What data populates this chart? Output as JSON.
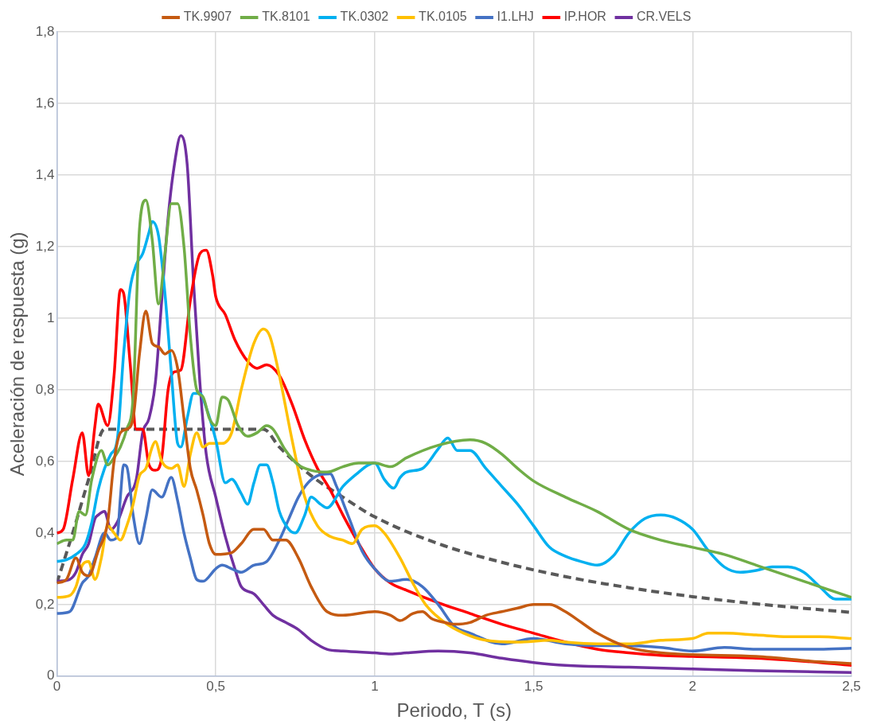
{
  "chart_data": {
    "type": "line",
    "xlabel": "Periodo, T (s)",
    "ylabel": "Aceleración de respuesta (g)",
    "xlim": [
      0,
      2.5
    ],
    "xticks": [
      0,
      {
        "value": 0.5,
        "label": "0,5"
      },
      1,
      {
        "value": 1.5,
        "label": "1,5"
      },
      2,
      {
        "value": 2.5,
        "label": "2,5"
      }
    ],
    "ylim": [
      0,
      1.8
    ],
    "yticks": [
      0,
      {
        "value": 0.2,
        "label": "0,2"
      },
      {
        "value": 0.4,
        "label": "0,4"
      },
      {
        "value": 0.6,
        "label": "0,6"
      },
      {
        "value": 0.8,
        "label": "0,8"
      },
      1,
      {
        "value": 1.2,
        "label": "1,2"
      },
      {
        "value": 1.4,
        "label": "1,4"
      },
      {
        "value": 1.6,
        "label": "1,6"
      },
      {
        "value": 1.8,
        "label": "1,8"
      }
    ],
    "grid": true,
    "legend": "top",
    "marker": "none",
    "series": [
      {
        "name": "TK.9907",
        "color": "#c55a11",
        "x": [
          0,
          0.03,
          0.06,
          0.08,
          0.1,
          0.13,
          0.16,
          0.18,
          0.2,
          0.22,
          0.24,
          0.26,
          0.28,
          0.3,
          0.32,
          0.34,
          0.36,
          0.38,
          0.4,
          0.42,
          0.44,
          0.46,
          0.48,
          0.5,
          0.55,
          0.58,
          0.62,
          0.65,
          0.68,
          0.72,
          0.76,
          0.8,
          0.85,
          0.9,
          1.0,
          1.05,
          1.08,
          1.12,
          1.15,
          1.18,
          1.22,
          1.25,
          1.3,
          1.35,
          1.4,
          1.45,
          1.5,
          1.55,
          1.6,
          1.65,
          1.7,
          1.8,
          1.9,
          2.0,
          2.2,
          2.4,
          2.5
        ],
        "values": [
          0.26,
          0.27,
          0.33,
          0.29,
          0.28,
          0.35,
          0.43,
          0.6,
          0.68,
          0.69,
          0.72,
          0.9,
          1.02,
          0.93,
          0.92,
          0.9,
          0.91,
          0.86,
          0.72,
          0.58,
          0.52,
          0.45,
          0.37,
          0.34,
          0.345,
          0.37,
          0.41,
          0.41,
          0.38,
          0.38,
          0.33,
          0.25,
          0.18,
          0.17,
          0.18,
          0.17,
          0.155,
          0.175,
          0.18,
          0.16,
          0.15,
          0.145,
          0.15,
          0.17,
          0.18,
          0.19,
          0.2,
          0.2,
          0.18,
          0.15,
          0.12,
          0.08,
          0.065,
          0.06,
          0.055,
          0.04,
          0.035
        ]
      },
      {
        "name": "TK.8101",
        "color": "#70ad47",
        "x": [
          0,
          0.03,
          0.05,
          0.07,
          0.09,
          0.11,
          0.14,
          0.16,
          0.18,
          0.2,
          0.22,
          0.24,
          0.26,
          0.28,
          0.3,
          0.32,
          0.34,
          0.36,
          0.38,
          0.4,
          0.42,
          0.44,
          0.46,
          0.48,
          0.5,
          0.52,
          0.54,
          0.57,
          0.6,
          0.63,
          0.66,
          0.68,
          0.72,
          0.76,
          0.8,
          0.85,
          0.9,
          0.95,
          1.0,
          1.05,
          1.1,
          1.2,
          1.3,
          1.35,
          1.4,
          1.45,
          1.5,
          1.6,
          1.7,
          1.8,
          1.9,
          2.0,
          2.1,
          2.2,
          2.3,
          2.4,
          2.5
        ],
        "values": [
          0.37,
          0.38,
          0.38,
          0.46,
          0.45,
          0.55,
          0.63,
          0.59,
          0.61,
          0.64,
          0.69,
          0.78,
          1.25,
          1.33,
          1.22,
          1.04,
          1.18,
          1.32,
          1.32,
          1.2,
          0.95,
          0.8,
          0.78,
          0.72,
          0.7,
          0.78,
          0.77,
          0.7,
          0.67,
          0.68,
          0.7,
          0.69,
          0.63,
          0.59,
          0.575,
          0.57,
          0.585,
          0.595,
          0.595,
          0.585,
          0.61,
          0.645,
          0.66,
          0.65,
          0.62,
          0.58,
          0.545,
          0.5,
          0.46,
          0.41,
          0.38,
          0.36,
          0.34,
          0.31,
          0.28,
          0.25,
          0.22
        ]
      },
      {
        "name": "TK.0302",
        "color": "#00b0f0",
        "x": [
          0,
          0.03,
          0.06,
          0.09,
          0.11,
          0.13,
          0.15,
          0.17,
          0.19,
          0.21,
          0.23,
          0.25,
          0.27,
          0.29,
          0.3,
          0.32,
          0.34,
          0.36,
          0.38,
          0.39,
          0.41,
          0.43,
          0.45,
          0.47,
          0.5,
          0.53,
          0.55,
          0.58,
          0.6,
          0.62,
          0.64,
          0.66,
          0.68,
          0.7,
          0.73,
          0.75,
          0.78,
          0.8,
          0.83,
          0.85,
          0.9,
          0.95,
          0.98,
          1.0,
          1.03,
          1.06,
          1.08,
          1.1,
          1.15,
          1.2,
          1.23,
          1.26,
          1.3,
          1.35,
          1.4,
          1.45,
          1.5,
          1.55,
          1.6,
          1.65,
          1.7,
          1.75,
          1.8,
          1.85,
          1.9,
          1.95,
          2.0,
          2.05,
          2.1,
          2.15,
          2.2,
          2.25,
          2.3,
          2.35,
          2.4,
          2.45,
          2.5
        ],
        "values": [
          0.32,
          0.325,
          0.34,
          0.37,
          0.43,
          0.52,
          0.58,
          0.62,
          0.66,
          0.9,
          1.08,
          1.15,
          1.18,
          1.24,
          1.27,
          1.23,
          1.07,
          0.85,
          0.65,
          0.64,
          0.72,
          0.79,
          0.79,
          0.75,
          0.66,
          0.54,
          0.55,
          0.51,
          0.48,
          0.54,
          0.59,
          0.59,
          0.54,
          0.46,
          0.41,
          0.4,
          0.45,
          0.5,
          0.48,
          0.47,
          0.53,
          0.57,
          0.59,
          0.595,
          0.55,
          0.525,
          0.555,
          0.57,
          0.58,
          0.635,
          0.665,
          0.63,
          0.63,
          0.58,
          0.53,
          0.48,
          0.42,
          0.36,
          0.335,
          0.32,
          0.31,
          0.335,
          0.4,
          0.44,
          0.45,
          0.44,
          0.41,
          0.35,
          0.305,
          0.29,
          0.295,
          0.305,
          0.305,
          0.29,
          0.25,
          0.215,
          0.215
        ]
      },
      {
        "name": "TK.0105",
        "color": "#ffc000",
        "x": [
          0,
          0.04,
          0.06,
          0.08,
          0.1,
          0.12,
          0.14,
          0.16,
          0.18,
          0.2,
          0.22,
          0.24,
          0.26,
          0.28,
          0.3,
          0.31,
          0.33,
          0.36,
          0.38,
          0.4,
          0.42,
          0.44,
          0.46,
          0.48,
          0.52,
          0.55,
          0.58,
          0.62,
          0.65,
          0.67,
          0.7,
          0.74,
          0.78,
          0.82,
          0.86,
          0.9,
          0.93,
          0.96,
          1.0,
          1.03,
          1.08,
          1.12,
          1.16,
          1.22,
          1.28,
          1.35,
          1.45,
          1.55,
          1.6,
          1.7,
          1.8,
          1.9,
          2.0,
          2.05,
          2.1,
          2.2,
          2.3,
          2.4,
          2.5
        ],
        "values": [
          0.22,
          0.225,
          0.25,
          0.31,
          0.32,
          0.27,
          0.33,
          0.42,
          0.4,
          0.38,
          0.42,
          0.48,
          0.56,
          0.58,
          0.64,
          0.655,
          0.6,
          0.58,
          0.59,
          0.53,
          0.62,
          0.68,
          0.64,
          0.65,
          0.65,
          0.68,
          0.8,
          0.93,
          0.97,
          0.95,
          0.84,
          0.66,
          0.5,
          0.42,
          0.39,
          0.38,
          0.37,
          0.41,
          0.42,
          0.4,
          0.33,
          0.26,
          0.2,
          0.15,
          0.12,
          0.1,
          0.095,
          0.1,
          0.095,
          0.09,
          0.09,
          0.1,
          0.105,
          0.12,
          0.12,
          0.115,
          0.11,
          0.11,
          0.105
        ]
      },
      {
        "name": "I1.LHJ",
        "color": "#4472c4",
        "x": [
          0,
          0.04,
          0.08,
          0.1,
          0.12,
          0.15,
          0.17,
          0.19,
          0.2,
          0.21,
          0.22,
          0.24,
          0.26,
          0.28,
          0.3,
          0.33,
          0.36,
          0.38,
          0.4,
          0.42,
          0.44,
          0.46,
          0.5,
          0.52,
          0.55,
          0.58,
          0.62,
          0.66,
          0.7,
          0.73,
          0.76,
          0.79,
          0.82,
          0.86,
          0.88,
          0.92,
          0.96,
          1.0,
          1.05,
          1.1,
          1.15,
          1.2,
          1.25,
          1.3,
          1.4,
          1.5,
          1.6,
          1.7,
          1.8,
          1.9,
          2.0,
          2.1,
          2.2,
          2.3,
          2.4,
          2.5
        ],
        "values": [
          0.175,
          0.18,
          0.26,
          0.28,
          0.33,
          0.4,
          0.38,
          0.39,
          0.5,
          0.59,
          0.585,
          0.45,
          0.37,
          0.44,
          0.52,
          0.5,
          0.555,
          0.49,
          0.4,
          0.33,
          0.27,
          0.265,
          0.3,
          0.31,
          0.3,
          0.29,
          0.31,
          0.32,
          0.38,
          0.44,
          0.5,
          0.54,
          0.56,
          0.565,
          0.53,
          0.44,
          0.35,
          0.3,
          0.265,
          0.27,
          0.25,
          0.2,
          0.14,
          0.12,
          0.09,
          0.105,
          0.09,
          0.085,
          0.085,
          0.08,
          0.07,
          0.08,
          0.075,
          0.075,
          0.075,
          0.078
        ]
      },
      {
        "name": "IP.HOR",
        "color": "#ff0000",
        "x": [
          0,
          0.02,
          0.05,
          0.08,
          0.1,
          0.12,
          0.13,
          0.16,
          0.18,
          0.2,
          0.21,
          0.23,
          0.25,
          0.27,
          0.29,
          0.31,
          0.33,
          0.35,
          0.37,
          0.39,
          0.42,
          0.45,
          0.47,
          0.49,
          0.5,
          0.53,
          0.56,
          0.6,
          0.63,
          0.66,
          0.7,
          0.74,
          0.78,
          0.82,
          0.86,
          0.9,
          0.95,
          1.0,
          1.05,
          1.1,
          1.2,
          1.3,
          1.4,
          1.5,
          1.6,
          1.7,
          1.8,
          1.9,
          2.0,
          2.2,
          2.4,
          2.5
        ],
        "values": [
          0.4,
          0.41,
          0.55,
          0.68,
          0.56,
          0.7,
          0.76,
          0.7,
          0.84,
          1.08,
          1.07,
          0.88,
          0.69,
          0.69,
          0.59,
          0.575,
          0.61,
          0.8,
          0.85,
          0.855,
          1.05,
          1.18,
          1.19,
          1.12,
          1.06,
          1.01,
          0.94,
          0.88,
          0.86,
          0.87,
          0.84,
          0.76,
          0.66,
          0.58,
          0.52,
          0.45,
          0.37,
          0.3,
          0.26,
          0.24,
          0.205,
          0.175,
          0.145,
          0.12,
          0.095,
          0.075,
          0.065,
          0.058,
          0.055,
          0.05,
          0.038,
          0.03
        ]
      },
      {
        "name": "CR.VELS",
        "color": "#7030a0",
        "x": [
          0,
          0.04,
          0.06,
          0.08,
          0.1,
          0.12,
          0.13,
          0.15,
          0.17,
          0.19,
          0.22,
          0.25,
          0.27,
          0.29,
          0.31,
          0.33,
          0.35,
          0.37,
          0.39,
          0.41,
          0.43,
          0.45,
          0.47,
          0.5,
          0.53,
          0.56,
          0.58,
          0.62,
          0.65,
          0.68,
          0.72,
          0.76,
          0.8,
          0.85,
          0.9,
          1.0,
          1.05,
          1.1,
          1.2,
          1.3,
          1.4,
          1.5,
          1.6,
          1.8,
          2.0,
          2.2,
          2.5
        ],
        "values": [
          0.265,
          0.27,
          0.29,
          0.34,
          0.37,
          0.44,
          0.45,
          0.46,
          0.41,
          0.43,
          0.5,
          0.55,
          0.68,
          0.72,
          0.82,
          1.05,
          1.28,
          1.43,
          1.51,
          1.43,
          1.1,
          0.82,
          0.62,
          0.5,
          0.39,
          0.3,
          0.25,
          0.23,
          0.2,
          0.17,
          0.15,
          0.13,
          0.1,
          0.075,
          0.07,
          0.065,
          0.062,
          0.065,
          0.07,
          0.065,
          0.05,
          0.038,
          0.03,
          0.025,
          0.02,
          0.015,
          0.01
        ]
      },
      {
        "color": "#595959",
        "line_style": "dashed",
        "x": [
          0,
          0.05,
          0.1,
          0.15,
          0.65,
          0.7,
          0.8,
          0.9,
          1.0,
          1.2,
          1.4,
          1.6,
          1.8,
          2.0,
          2.2,
          2.5
        ],
        "values": [
          0.26,
          0.4,
          0.55,
          0.69,
          0.69,
          0.64,
          0.56,
          0.5,
          0.445,
          0.37,
          0.318,
          0.278,
          0.247,
          0.222,
          0.202,
          0.178
        ]
      }
    ]
  }
}
